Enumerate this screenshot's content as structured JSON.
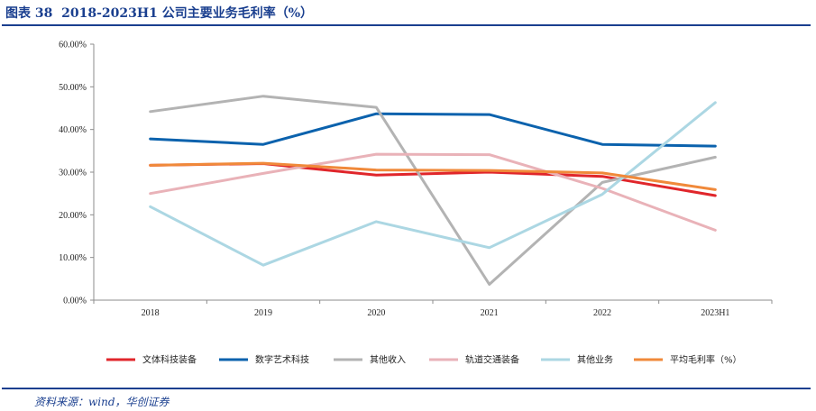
{
  "header": {
    "figure_no": "图表 38",
    "title": "2018-2023H1 公司主要业务毛利率（%）"
  },
  "footer": {
    "source": "资料来源：wind，华创证券"
  },
  "chart_data": {
    "type": "line",
    "title": "2018-2023H1 公司主要业务毛利率（%）",
    "xlabel": "",
    "ylabel": "",
    "categories": [
      "2018",
      "2019",
      "2020",
      "2021",
      "2022",
      "2023H1"
    ],
    "ylim": [
      0,
      60
    ],
    "yticks": [
      0,
      10,
      20,
      30,
      40,
      50,
      60
    ],
    "ytick_labels": [
      "0.00%",
      "10.00%",
      "20.00%",
      "30.00%",
      "40.00%",
      "50.00%",
      "60.00%"
    ],
    "grid": false,
    "legend_position": "bottom",
    "series": [
      {
        "name": "文体科技装备",
        "color": "#e0262b",
        "values": [
          31.6,
          32.0,
          29.3,
          30.0,
          29.0,
          24.5
        ]
      },
      {
        "name": "数字艺术科技",
        "color": "#0b62ad",
        "values": [
          37.8,
          36.5,
          43.7,
          43.5,
          36.5,
          36.1
        ]
      },
      {
        "name": "其他收入",
        "color": "#b3b3b3",
        "values": [
          44.2,
          47.8,
          45.2,
          3.7,
          27.6,
          33.5
        ]
      },
      {
        "name": "轨道交通装备",
        "color": "#e9b2b8",
        "values": [
          25.0,
          29.7,
          34.2,
          34.1,
          26.2,
          16.4
        ]
      },
      {
        "name": "其他业务",
        "color": "#acd7e3",
        "values": [
          21.9,
          8.2,
          18.4,
          12.3,
          24.8,
          46.3
        ]
      },
      {
        "name": "平均毛利率（%）",
        "color": "#f0893a",
        "values": [
          31.6,
          32.1,
          30.5,
          30.4,
          29.8,
          25.9
        ]
      }
    ]
  }
}
